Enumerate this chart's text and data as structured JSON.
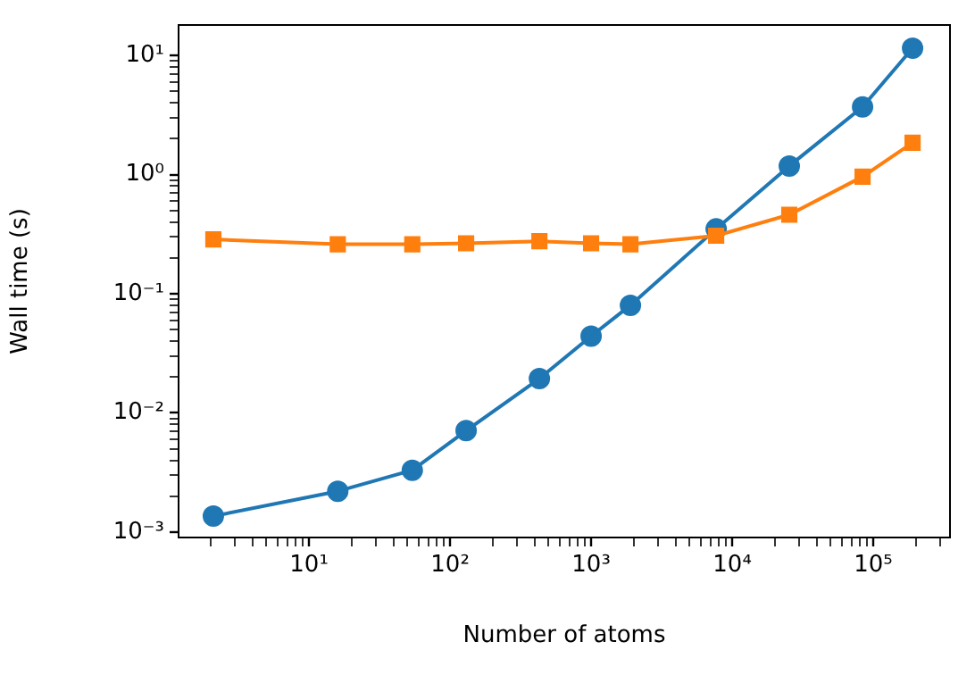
{
  "chart_data": {
    "type": "line",
    "xlabel": "Number of atoms",
    "ylabel": "Wall time (s)",
    "log": "xy",
    "grid": false,
    "legend": false,
    "xlim": [
      1.19,
      350000
    ],
    "ylim": [
      0.0009,
      18
    ],
    "xticks": [
      {
        "value": 2,
        "label": null
      },
      {
        "value": 3,
        "label": null
      },
      {
        "value": 4,
        "label": null
      },
      {
        "value": 5,
        "label": null
      },
      {
        "value": 6,
        "label": null
      },
      {
        "value": 7,
        "label": null
      },
      {
        "value": 8,
        "label": null
      },
      {
        "value": 9,
        "label": null
      },
      {
        "value": 10,
        "label": "10¹"
      },
      {
        "value": 20,
        "label": null
      },
      {
        "value": 30,
        "label": null
      },
      {
        "value": 40,
        "label": null
      },
      {
        "value": 50,
        "label": null
      },
      {
        "value": 60,
        "label": null
      },
      {
        "value": 70,
        "label": null
      },
      {
        "value": 80,
        "label": null
      },
      {
        "value": 90,
        "label": null
      },
      {
        "value": 100,
        "label": "10²"
      },
      {
        "value": 200,
        "label": null
      },
      {
        "value": 300,
        "label": null
      },
      {
        "value": 400,
        "label": null
      },
      {
        "value": 500,
        "label": null
      },
      {
        "value": 600,
        "label": null
      },
      {
        "value": 700,
        "label": null
      },
      {
        "value": 800,
        "label": null
      },
      {
        "value": 900,
        "label": null
      },
      {
        "value": 1000,
        "label": "10³"
      },
      {
        "value": 2000,
        "label": null
      },
      {
        "value": 3000,
        "label": null
      },
      {
        "value": 4000,
        "label": null
      },
      {
        "value": 5000,
        "label": null
      },
      {
        "value": 6000,
        "label": null
      },
      {
        "value": 7000,
        "label": null
      },
      {
        "value": 8000,
        "label": null
      },
      {
        "value": 9000,
        "label": null
      },
      {
        "value": 10000,
        "label": "10⁴"
      },
      {
        "value": 20000,
        "label": null
      },
      {
        "value": 30000,
        "label": null
      },
      {
        "value": 40000,
        "label": null
      },
      {
        "value": 50000,
        "label": null
      },
      {
        "value": 60000,
        "label": null
      },
      {
        "value": 70000,
        "label": null
      },
      {
        "value": 80000,
        "label": null
      },
      {
        "value": 90000,
        "label": null
      },
      {
        "value": 100000,
        "label": "10⁵"
      },
      {
        "value": 200000,
        "label": null
      },
      {
        "value": 300000,
        "label": null
      }
    ],
    "yticks": [
      {
        "value": 0.001,
        "label": "10⁻³"
      },
      {
        "value": 0.002,
        "label": null
      },
      {
        "value": 0.003,
        "label": null
      },
      {
        "value": 0.004,
        "label": null
      },
      {
        "value": 0.005,
        "label": null
      },
      {
        "value": 0.006,
        "label": null
      },
      {
        "value": 0.007,
        "label": null
      },
      {
        "value": 0.008,
        "label": null
      },
      {
        "value": 0.009,
        "label": null
      },
      {
        "value": 0.01,
        "label": "10⁻²"
      },
      {
        "value": 0.02,
        "label": null
      },
      {
        "value": 0.03,
        "label": null
      },
      {
        "value": 0.04,
        "label": null
      },
      {
        "value": 0.05,
        "label": null
      },
      {
        "value": 0.06,
        "label": null
      },
      {
        "value": 0.07,
        "label": null
      },
      {
        "value": 0.08,
        "label": null
      },
      {
        "value": 0.09,
        "label": null
      },
      {
        "value": 0.1,
        "label": "10⁻¹"
      },
      {
        "value": 0.2,
        "label": null
      },
      {
        "value": 0.3,
        "label": null
      },
      {
        "value": 0.4,
        "label": null
      },
      {
        "value": 0.5,
        "label": null
      },
      {
        "value": 0.6,
        "label": null
      },
      {
        "value": 0.7,
        "label": null
      },
      {
        "value": 0.8,
        "label": null
      },
      {
        "value": 0.9,
        "label": null
      },
      {
        "value": 1,
        "label": "10⁰"
      },
      {
        "value": 2,
        "label": null
      },
      {
        "value": 3,
        "label": null
      },
      {
        "value": 4,
        "label": null
      },
      {
        "value": 5,
        "label": null
      },
      {
        "value": 6,
        "label": null
      },
      {
        "value": 7,
        "label": null
      },
      {
        "value": 8,
        "label": null
      },
      {
        "value": 9,
        "label": null
      },
      {
        "value": 10,
        "label": "10¹"
      }
    ],
    "x": [
      2.1,
      16,
      54,
      130,
      430,
      1000,
      1900,
      7700,
      25400,
      84000,
      190000
    ],
    "series": [
      {
        "color": "#1f77b4",
        "marker": "circle",
        "values": [
          0.00136,
          0.0022,
          0.0033,
          0.0071,
          0.0194,
          0.044,
          0.08,
          0.35,
          1.18,
          3.7,
          11.5
        ]
      },
      {
        "color": "#ff7f0e",
        "marker": "square",
        "values": [
          0.286,
          0.26,
          0.26,
          0.265,
          0.276,
          0.265,
          0.26,
          0.307,
          0.46,
          0.96,
          1.85
        ]
      }
    ]
  }
}
